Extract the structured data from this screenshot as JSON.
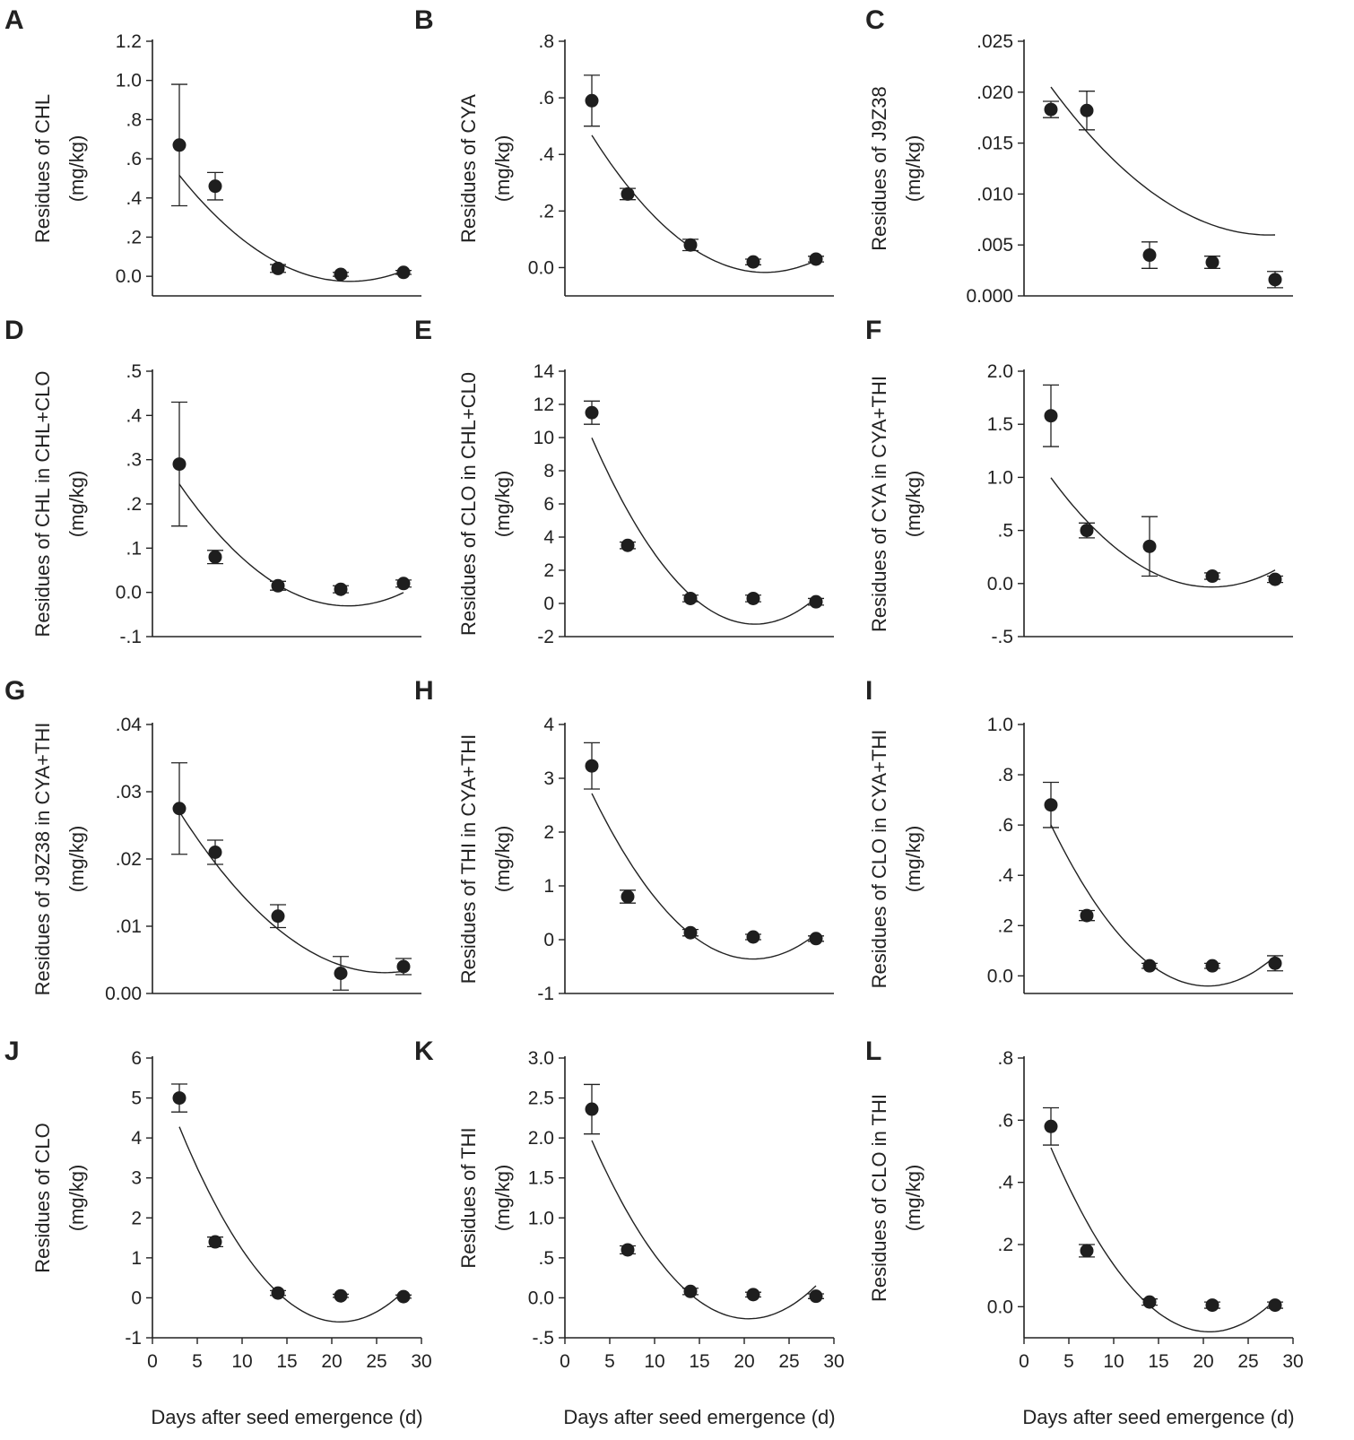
{
  "x_axis_label": "Days after seed emergence (d)",
  "chart_data": [
    {
      "panel": "A",
      "type": "scatter",
      "ylabel1": "Residues of CHL",
      "ylabel2": "(mg/kg)",
      "ylim": [
        -0.1,
        1.2
      ],
      "yticks": [
        0,
        0.2,
        0.4,
        0.6,
        0.8,
        1.0,
        1.2
      ],
      "ytick_labels": [
        "0.0",
        ".2",
        ".4",
        ".6",
        ".8",
        "1.0",
        "1.2"
      ],
      "x": [
        3,
        7,
        14,
        21,
        28
      ],
      "y": [
        0.67,
        0.46,
        0.04,
        0.01,
        0.02
      ],
      "err": [
        0.31,
        0.07,
        0.02,
        0.01,
        0.01
      ],
      "fit": [
        0.0015,
        -0.066,
        0.7
      ]
    },
    {
      "panel": "B",
      "type": "scatter",
      "ylabel1": "Residues of CYA",
      "ylabel2": "(mg/kg)",
      "ylim": [
        -0.1,
        0.8
      ],
      "yticks": [
        0,
        0.2,
        0.4,
        0.6,
        0.8
      ],
      "ytick_labels": [
        "0.0",
        ".2",
        ".4",
        ".6",
        ".8"
      ],
      "x": [
        3,
        7,
        14,
        21,
        28
      ],
      "y": [
        0.59,
        0.26,
        0.08,
        0.02,
        0.03
      ],
      "err": [
        0.09,
        0.02,
        0.02,
        0.01,
        0.01
      ],
      "fit": [
        0.0013,
        -0.058,
        0.63
      ]
    },
    {
      "panel": "C",
      "type": "scatter",
      "ylabel1": "Residues of J9Z38",
      "ylabel2": "(mg/kg)",
      "ylim": [
        0,
        0.025
      ],
      "yticks": [
        0,
        0.005,
        0.01,
        0.015,
        0.02,
        0.025
      ],
      "ytick_labels": [
        "0.000",
        ".005",
        ".010",
        ".015",
        ".020",
        ".025"
      ],
      "x": [
        3,
        7,
        14,
        21,
        28
      ],
      "y": [
        0.0183,
        0.0182,
        0.004,
        0.0033,
        0.0016
      ],
      "err": [
        0.0008,
        0.0019,
        0.0013,
        0.0006,
        0.0008
      ],
      "fit": [
        2.45e-05,
        -0.00134,
        0.0243
      ]
    },
    {
      "panel": "D",
      "type": "scatter",
      "ylabel1": "Residues of CHL in CHL+CLO",
      "ylabel2": "(mg/kg)",
      "ylim": [
        -0.1,
        0.5
      ],
      "yticks": [
        -0.1,
        0,
        0.1,
        0.2,
        0.3,
        0.4,
        0.5
      ],
      "ytick_labels": [
        "-.1",
        "0.0",
        ".1",
        ".2",
        ".3",
        ".4",
        ".5"
      ],
      "x": [
        3,
        7,
        14,
        21,
        28
      ],
      "y": [
        0.29,
        0.08,
        0.015,
        0.007,
        0.02
      ],
      "err": [
        0.14,
        0.015,
        0.01,
        0.008,
        0.008
      ],
      "fit": [
        0.00078,
        -0.034,
        0.34
      ]
    },
    {
      "panel": "E",
      "type": "scatter",
      "ylabel1": "Residues of CLO in CHL+CL0",
      "ylabel2": "(mg/kg)",
      "ylim": [
        -2,
        14
      ],
      "yticks": [
        -2,
        0,
        2,
        4,
        6,
        8,
        10,
        12,
        14
      ],
      "ytick_labels": [
        "-2",
        "0",
        "2",
        "4",
        "6",
        "8",
        "10",
        "12",
        "14"
      ],
      "x": [
        3,
        7,
        14,
        21,
        28
      ],
      "y": [
        11.5,
        3.5,
        0.3,
        0.3,
        0.1
      ],
      "err": [
        0.7,
        0.2,
        0.2,
        0.2,
        0.2
      ],
      "fit": [
        0.034,
        -1.44,
        14.0
      ]
    },
    {
      "panel": "F",
      "type": "scatter",
      "ylabel1": "Residues of CYA in CYA+THI",
      "ylabel2": "(mg/kg)",
      "ylim": [
        -0.5,
        2.0
      ],
      "yticks": [
        -0.5,
        0,
        0.5,
        1.0,
        1.5,
        2.0
      ],
      "ytick_labels": [
        "-.5",
        "0.0",
        ".5",
        "1.0",
        "1.5",
        "2.0"
      ],
      "x": [
        3,
        7,
        14,
        21,
        28
      ],
      "y": [
        1.58,
        0.5,
        0.35,
        0.07,
        0.04
      ],
      "err": [
        0.29,
        0.07,
        0.28,
        0.03,
        0.03
      ],
      "fit": [
        0.0032,
        -0.134,
        1.37
      ]
    },
    {
      "panel": "G",
      "type": "scatter",
      "ylabel1": "Residues of J9Z38 in CYA+THI",
      "ylabel2": "(mg/kg)",
      "ylim": [
        0,
        0.04
      ],
      "yticks": [
        0,
        0.01,
        0.02,
        0.03,
        0.04
      ],
      "ytick_labels": [
        "0.00",
        ".01",
        ".02",
        ".03",
        ".04"
      ],
      "x": [
        3,
        7,
        14,
        21,
        28
      ],
      "y": [
        0.0275,
        0.021,
        0.0115,
        0.003,
        0.004
      ],
      "err": [
        0.0068,
        0.0018,
        0.0017,
        0.0025,
        0.0012
      ],
      "fit": [
        4.55e-05,
        -0.00236,
        0.0337
      ]
    },
    {
      "panel": "H",
      "type": "scatter",
      "ylabel1": "Residues of THI in CYA+THI",
      "ylabel2": "(mg/kg)",
      "ylim": [
        -1,
        4
      ],
      "yticks": [
        -1,
        0,
        1,
        2,
        3,
        4
      ],
      "ytick_labels": [
        "-1",
        "0",
        "1",
        "2",
        "3",
        "4"
      ],
      "x": [
        3,
        7,
        14,
        21,
        28
      ],
      "y": [
        3.23,
        0.8,
        0.13,
        0.05,
        0.02
      ],
      "err": [
        0.43,
        0.12,
        0.06,
        0.05,
        0.05
      ],
      "fit": [
        0.0095,
        -0.399,
        3.83
      ]
    },
    {
      "panel": "I",
      "type": "scatter",
      "ylabel1": "Residues of CLO in CYA+THI",
      "ylabel2": "(mg/kg)",
      "ylim": [
        -0.07,
        1.0
      ],
      "yticks": [
        0,
        0.2,
        0.4,
        0.6,
        0.8,
        1.0
      ],
      "ytick_labels": [
        "0.0",
        ".2",
        ".4",
        ".6",
        ".8",
        "1.0"
      ],
      "x": [
        3,
        7,
        14,
        21,
        28
      ],
      "y": [
        0.68,
        0.24,
        0.04,
        0.04,
        0.05
      ],
      "err": [
        0.09,
        0.02,
        0.01,
        0.01,
        0.03
      ],
      "fit": [
        0.0021,
        -0.086,
        0.84
      ]
    },
    {
      "panel": "J",
      "type": "scatter",
      "ylabel1": "Residues of CLO",
      "ylabel2": "(mg/kg)",
      "ylim": [
        -1,
        6
      ],
      "yticks": [
        -1,
        0,
        1,
        2,
        3,
        4,
        5,
        6
      ],
      "ytick_labels": [
        "-1",
        "0",
        "1",
        "2",
        "3",
        "4",
        "5",
        "6"
      ],
      "x": [
        3,
        7,
        14,
        21,
        28
      ],
      "y": [
        5.0,
        1.4,
        0.12,
        0.05,
        0.03
      ],
      "err": [
        0.35,
        0.12,
        0.06,
        0.04,
        0.04
      ],
      "fit": [
        0.0152,
        -0.636,
        6.05
      ]
    },
    {
      "panel": "K",
      "type": "scatter",
      "ylabel1": "Residues of THI",
      "ylabel2": "(mg/kg)",
      "ylim": [
        -0.5,
        3.0
      ],
      "yticks": [
        -0.5,
        0,
        0.5,
        1.0,
        1.5,
        2.0,
        2.5,
        3.0
      ],
      "ytick_labels": [
        "-.5",
        "0.0",
        ".5",
        "1.0",
        "1.5",
        "2.0",
        "2.5",
        "3.0"
      ],
      "x": [
        3,
        7,
        14,
        21,
        28
      ],
      "y": [
        2.36,
        0.6,
        0.08,
        0.04,
        0.02
      ],
      "err": [
        0.31,
        0.05,
        0.04,
        0.03,
        0.03
      ],
      "fit": [
        0.0073,
        -0.299,
        2.8
      ]
    },
    {
      "panel": "L",
      "type": "scatter",
      "ylabel1": "Residues of CLO in THI",
      "ylabel2": "(mg/kg)",
      "ylim": [
        -0.1,
        0.8
      ],
      "yticks": [
        0,
        0.2,
        0.4,
        0.6,
        0.8
      ],
      "ytick_labels": [
        "0.0",
        ".2",
        ".4",
        ".6",
        ".8"
      ],
      "x": [
        3,
        7,
        14,
        21,
        28
      ],
      "y": [
        0.58,
        0.18,
        0.015,
        0.005,
        0.005
      ],
      "err": [
        0.06,
        0.02,
        0.01,
        0.01,
        0.01
      ],
      "fit": [
        0.0019,
        -0.0785,
        0.73
      ]
    }
  ],
  "xticks": [
    0,
    5,
    10,
    15,
    20,
    25,
    30
  ],
  "xtick_labels": [
    "0",
    "5",
    "10",
    "15",
    "20",
    "25",
    "30"
  ],
  "xlim": [
    0,
    30
  ]
}
